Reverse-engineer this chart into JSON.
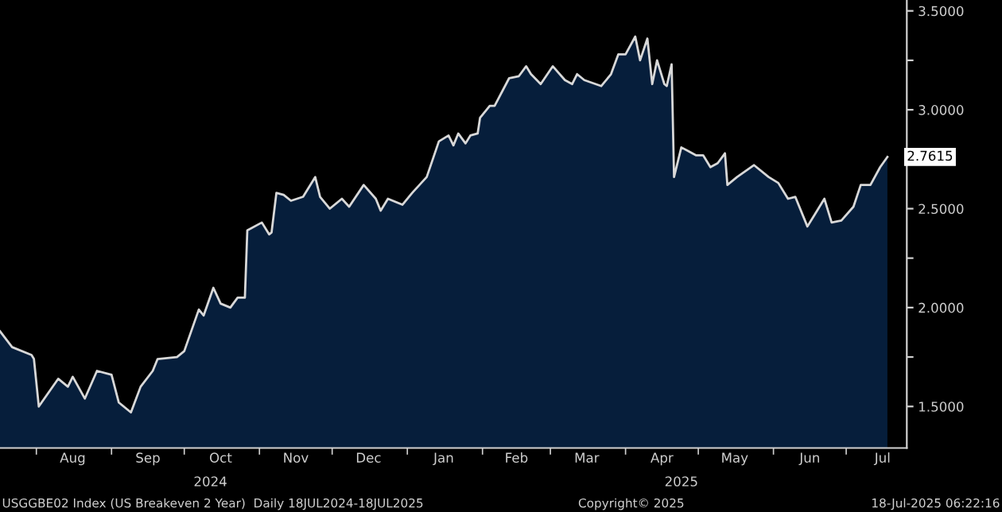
{
  "chart_data": {
    "type": "area",
    "x": [
      "2024-07-17",
      "2024-07-22",
      "2024-07-30",
      "2024-07-31",
      "2024-08-02",
      "2024-08-10",
      "2024-08-14",
      "2024-08-16",
      "2024-08-21",
      "2024-08-26",
      "2024-09-01",
      "2024-09-04",
      "2024-09-09",
      "2024-09-13",
      "2024-09-18",
      "2024-09-20",
      "2024-09-28",
      "2024-10-01",
      "2024-10-07",
      "2024-10-09",
      "2024-10-13",
      "2024-10-16",
      "2024-10-20",
      "2024-10-23",
      "2024-10-26",
      "2024-10-27",
      "2024-11-02",
      "2024-11-05",
      "2024-11-06",
      "2024-11-08",
      "2024-11-11",
      "2024-11-14",
      "2024-11-19",
      "2024-11-24",
      "2024-11-26",
      "2024-11-30",
      "2024-12-05",
      "2024-12-08",
      "2024-12-14",
      "2024-12-19",
      "2024-12-21",
      "2024-12-24",
      "2024-12-30",
      "2025-01-03",
      "2025-01-09",
      "2025-01-14",
      "2025-01-18",
      "2025-01-20",
      "2025-01-22",
      "2025-01-25",
      "2025-01-27",
      "2025-01-30",
      "2025-01-31",
      "2025-02-04",
      "2025-02-06",
      "2025-02-12",
      "2025-02-16",
      "2025-02-19",
      "2025-02-21",
      "2025-02-25",
      "2025-03-02",
      "2025-03-07",
      "2025-03-10",
      "2025-03-12",
      "2025-03-15",
      "2025-03-22",
      "2025-03-26",
      "2025-03-29",
      "2025-04-01",
      "2025-04-05",
      "2025-04-07",
      "2025-04-10",
      "2025-04-12",
      "2025-04-14",
      "2025-04-17",
      "2025-04-18",
      "2025-04-20",
      "2025-04-21",
      "2025-04-24",
      "2025-04-27",
      "2025-04-30",
      "2025-05-03",
      "2025-05-06",
      "2025-05-09",
      "2025-05-12",
      "2025-05-13",
      "2025-05-17",
      "2025-05-24",
      "2025-05-30",
      "2025-06-03",
      "2025-06-07",
      "2025-06-10",
      "2025-06-15",
      "2025-06-18",
      "2025-06-22",
      "2025-06-25",
      "2025-06-29",
      "2025-07-04",
      "2025-07-07",
      "2025-07-11",
      "2025-07-15",
      "2025-07-18"
    ],
    "series": [
      {
        "color": "#d8d8d8",
        "values": [
          1.88,
          1.8,
          1.76,
          1.74,
          1.5,
          1.64,
          1.6,
          1.65,
          1.54,
          1.68,
          1.66,
          1.52,
          1.47,
          1.6,
          1.68,
          1.74,
          1.75,
          1.78,
          1.99,
          1.96,
          2.1,
          2.02,
          2.0,
          2.05,
          2.05,
          2.39,
          2.43,
          2.37,
          2.38,
          2.58,
          2.57,
          2.54,
          2.56,
          2.66,
          2.56,
          2.5,
          2.55,
          2.51,
          2.62,
          2.55,
          2.49,
          2.55,
          2.52,
          2.58,
          2.66,
          2.84,
          2.87,
          2.82,
          2.88,
          2.83,
          2.87,
          2.88,
          2.96,
          3.02,
          3.02,
          3.16,
          3.17,
          3.22,
          3.18,
          3.13,
          3.22,
          3.15,
          3.13,
          3.18,
          3.15,
          3.12,
          3.18,
          3.28,
          3.28,
          3.37,
          3.25,
          3.36,
          3.13,
          3.25,
          3.13,
          3.12,
          3.23,
          2.66,
          2.81,
          2.79,
          2.77,
          2.77,
          2.71,
          2.73,
          2.78,
          2.62,
          2.66,
          2.72,
          2.66,
          2.63,
          2.55,
          2.56,
          2.41,
          2.47,
          2.55,
          2.43,
          2.44,
          2.51,
          2.62,
          2.62,
          2.71,
          2.7615
        ]
      }
    ],
    "xlim": [
      "2024-07-17",
      "2025-07-26"
    ],
    "xticks": [
      {
        "value": "2024-08-01",
        "label": null
      },
      {
        "value": "2024-08-16",
        "label": "Aug"
      },
      {
        "value": "2024-09-01",
        "label": null
      },
      {
        "value": "2024-09-16",
        "label": "Sep"
      },
      {
        "value": "2024-10-01",
        "label": null
      },
      {
        "value": "2024-10-16",
        "label": "Oct"
      },
      {
        "value": "2024-11-01",
        "label": null
      },
      {
        "value": "2024-11-16",
        "label": "Nov"
      },
      {
        "value": "2024-12-01",
        "label": null
      },
      {
        "value": "2024-12-16",
        "label": "Dec"
      },
      {
        "value": "2025-01-01",
        "label": null
      },
      {
        "value": "2025-01-16",
        "label": "Jan"
      },
      {
        "value": "2025-02-01",
        "label": null
      },
      {
        "value": "2025-02-15",
        "label": "Feb"
      },
      {
        "value": "2025-03-01",
        "label": null
      },
      {
        "value": "2025-03-16",
        "label": "Mar"
      },
      {
        "value": "2025-04-01",
        "label": null
      },
      {
        "value": "2025-04-16",
        "label": "Apr"
      },
      {
        "value": "2025-05-01",
        "label": null
      },
      {
        "value": "2025-05-16",
        "label": "May"
      },
      {
        "value": "2025-06-01",
        "label": null
      },
      {
        "value": "2025-06-16",
        "label": "Jun"
      },
      {
        "value": "2025-07-01",
        "label": null
      },
      {
        "value": "2025-07-16",
        "label": "Jul"
      }
    ],
    "ylim": [
      1.29,
      3.555
    ],
    "yticks": [
      {
        "value": 1.5,
        "label": "1.5000"
      },
      {
        "value": 1.75,
        "label": null
      },
      {
        "value": 2.0,
        "label": "2.0000"
      },
      {
        "value": 2.25,
        "label": null
      },
      {
        "value": 2.5,
        "label": "2.5000"
      },
      {
        "value": 2.75,
        "label": null
      },
      {
        "value": 3.0,
        "label": "3.0000"
      },
      {
        "value": 3.25,
        "label": null
      },
      {
        "value": 3.5,
        "label": "3.5000"
      }
    ],
    "annotations": [
      {
        "text": "2.7615",
        "x": "2025-07-18",
        "y": 2.7615
      },
      "2024",
      "2025",
      "USGGBE02 Index (US Breakeven 2 Year)  Daily 18JUL2024-18JUL2025",
      "Copyright© 2025",
      "18-Jul-2025 06:22:16"
    ],
    "grid": false
  }
}
